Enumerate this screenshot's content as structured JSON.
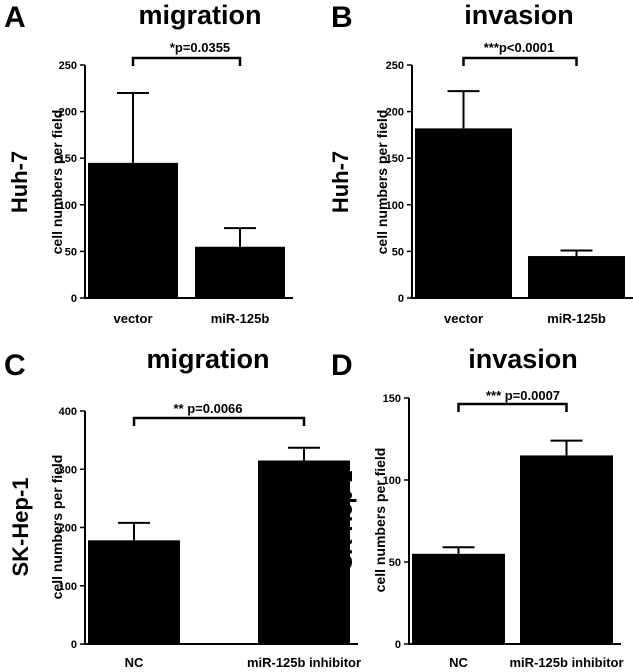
{
  "chart_data": [
    {
      "type": "bar",
      "panel": "A",
      "title": "migration",
      "row_label": "Huh-7",
      "ylabel": "cell numbers per field",
      "categories": [
        "vector",
        "miR-125b"
      ],
      "values": [
        145,
        55
      ],
      "errors": [
        75,
        20
      ],
      "ylim": [
        0,
        250
      ],
      "yticks": [
        0,
        50,
        100,
        150,
        200,
        250
      ],
      "significance": "*p=0.0355",
      "color": "#000000"
    },
    {
      "type": "bar",
      "panel": "B",
      "title": "invasion",
      "row_label": "Huh-7",
      "ylabel": "cell numbers per field",
      "categories": [
        "vector",
        "miR-125b"
      ],
      "values": [
        182,
        45
      ],
      "errors": [
        40,
        6
      ],
      "ylim": [
        0,
        250
      ],
      "yticks": [
        0,
        50,
        100,
        150,
        200,
        250
      ],
      "significance": "***p<0.0001",
      "color": "#000000"
    },
    {
      "type": "bar",
      "panel": "C",
      "title": "migration",
      "row_label": "SK-Hep-1",
      "ylabel": "cell numbers per field",
      "categories": [
        "NC",
        "miR-125b inhibitor"
      ],
      "values": [
        178,
        315
      ],
      "errors": [
        30,
        22
      ],
      "ylim": [
        0,
        400
      ],
      "yticks": [
        0,
        100,
        200,
        300,
        400
      ],
      "significance": "** p=0.0066",
      "color": "#000000"
    },
    {
      "type": "bar",
      "panel": "D",
      "title": "invasion",
      "row_label": "SK-Hep-1",
      "ylabel": "cell numbers per field",
      "categories": [
        "NC",
        "miR-125b inhibitor"
      ],
      "values": [
        55,
        115
      ],
      "errors": [
        4,
        9
      ],
      "ylim": [
        0,
        150
      ],
      "yticks": [
        0,
        50,
        100,
        150
      ],
      "significance": "*** p=0.0007",
      "color": "#000000"
    }
  ]
}
